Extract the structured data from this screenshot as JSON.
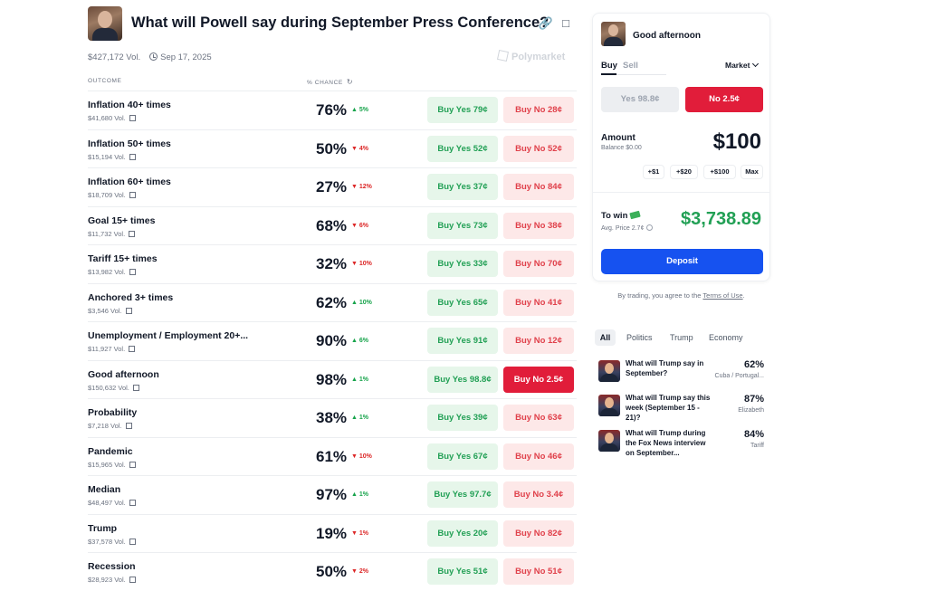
{
  "market": {
    "title": "What will Powell say during September Press Conference?",
    "volume": "$427,172 Vol.",
    "date": "Sep 17, 2025",
    "brand": "Polymarket"
  },
  "columns": {
    "outcome": "OUTCOME",
    "chance": "% CHANCE"
  },
  "outcomes": [
    {
      "name": "Inflation 40+ times",
      "vol": "$41,680 Vol.",
      "chance": "76%",
      "change": "5%",
      "dir": "up",
      "yes": "Buy Yes 79¢",
      "no": "Buy No 28¢"
    },
    {
      "name": "Inflation 50+ times",
      "vol": "$15,194 Vol.",
      "chance": "50%",
      "change": "4%",
      "dir": "down",
      "yes": "Buy Yes 52¢",
      "no": "Buy No 52¢"
    },
    {
      "name": "Inflation 60+ times",
      "vol": "$18,709 Vol.",
      "chance": "27%",
      "change": "12%",
      "dir": "down",
      "yes": "Buy Yes 37¢",
      "no": "Buy No 84¢"
    },
    {
      "name": "Goal 15+ times",
      "vol": "$11,732 Vol.",
      "chance": "68%",
      "change": "6%",
      "dir": "down",
      "yes": "Buy Yes 73¢",
      "no": "Buy No 38¢"
    },
    {
      "name": "Tariff 15+ times",
      "vol": "$13,982 Vol.",
      "chance": "32%",
      "change": "10%",
      "dir": "down",
      "yes": "Buy Yes 33¢",
      "no": "Buy No 70¢"
    },
    {
      "name": "Anchored 3+ times",
      "vol": "$3,546 Vol.",
      "chance": "62%",
      "change": "10%",
      "dir": "up",
      "yes": "Buy Yes 65¢",
      "no": "Buy No 41¢"
    },
    {
      "name": "Unemployment / Employment 20+...",
      "vol": "$11,927 Vol.",
      "chance": "90%",
      "change": "6%",
      "dir": "up",
      "yes": "Buy Yes 91¢",
      "no": "Buy No 12¢"
    },
    {
      "name": "Good afternoon",
      "vol": "$150,632 Vol.",
      "chance": "98%",
      "change": "1%",
      "dir": "up",
      "yes": "Buy Yes 98.8¢",
      "no": "Buy No 2.5¢",
      "selected": true
    },
    {
      "name": "Probability",
      "vol": "$7,218 Vol.",
      "chance": "38%",
      "change": "1%",
      "dir": "up",
      "yes": "Buy Yes 39¢",
      "no": "Buy No 63¢"
    },
    {
      "name": "Pandemic",
      "vol": "$15,965 Vol.",
      "chance": "61%",
      "change": "10%",
      "dir": "down",
      "yes": "Buy Yes 67¢",
      "no": "Buy No 46¢"
    },
    {
      "name": "Median",
      "vol": "$48,497 Vol.",
      "chance": "97%",
      "change": "1%",
      "dir": "up",
      "yes": "Buy Yes 97.7¢",
      "no": "Buy No 3.4¢"
    },
    {
      "name": "Trump",
      "vol": "$37,578 Vol.",
      "chance": "19%",
      "change": "1%",
      "dir": "down",
      "yes": "Buy Yes 20¢",
      "no": "Buy No 82¢"
    },
    {
      "name": "Recession",
      "vol": "$28,923 Vol.",
      "chance": "50%",
      "change": "2%",
      "dir": "down",
      "yes": "Buy Yes 51¢",
      "no": "Buy No 51¢"
    }
  ],
  "trade": {
    "title": "Good afternoon",
    "tab_buy": "Buy",
    "tab_sell": "Sell",
    "order_type": "Market",
    "yes_btn": "Yes 98.8¢",
    "no_btn": "No 2.5¢",
    "amount_label": "Amount",
    "balance": "Balance $0.00",
    "amount": "$100",
    "quick": [
      "+$1",
      "+$20",
      "+$100",
      "Max"
    ],
    "to_win_label": "To win",
    "avg_price": "Avg. Price 2.7¢",
    "to_win": "$3,738.89",
    "deposit": "Deposit",
    "terms_prefix": "By trading, you agree to the",
    "terms_link": "Terms of Use",
    "terms_suffix": "."
  },
  "related": {
    "tabs": [
      "All",
      "Politics",
      "Trump",
      "Economy"
    ],
    "items": [
      {
        "question": "What will Trump say in September?",
        "pct": "62%",
        "sub": "Cuba / Portugal..."
      },
      {
        "question": "What will Trump say this week (September 15 - 21)?",
        "pct": "87%",
        "sub": "Elizabeth"
      },
      {
        "question": "What will Trump during the Fox News interview on September...",
        "pct": "84%",
        "sub": "Tariff"
      }
    ]
  },
  "colors": {
    "yes_bg": "#e6f6ea",
    "yes_text": "#22a055",
    "no_bg": "#fde8e8",
    "no_text": "#e0414b",
    "no_active": "#e11d3a",
    "deposit": "#1652f0"
  }
}
